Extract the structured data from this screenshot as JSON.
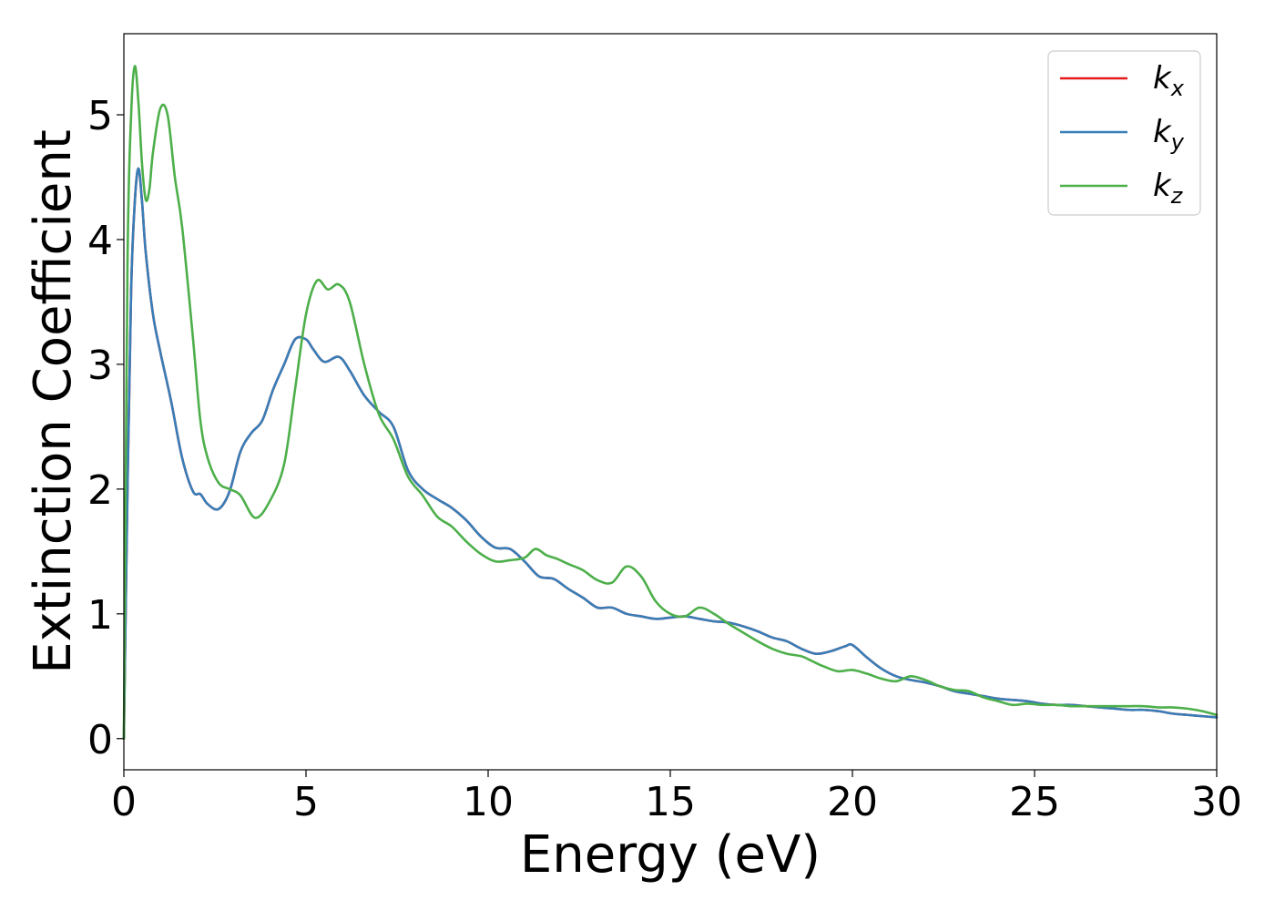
{
  "chart_data": {
    "type": "line",
    "title": "",
    "xlabel": "Energy (eV)",
    "ylabel": "Extinction Coefficient",
    "xlim": [
      0,
      30
    ],
    "ylim": [
      -0.25,
      5.65
    ],
    "xticks": [
      0,
      5,
      10,
      15,
      20,
      25,
      30
    ],
    "yticks": [
      0,
      1,
      2,
      3,
      4,
      5
    ],
    "grid": false,
    "legend_position": "top-right",
    "series": [
      {
        "name": "k",
        "subscript": "x",
        "color": "#e41a1c",
        "x": [
          0.0,
          0.1,
          0.2,
          0.3,
          0.4,
          0.5,
          0.6,
          0.8,
          1.0,
          1.3,
          1.6,
          1.9,
          2.1,
          2.3,
          2.6,
          2.9,
          3.2,
          3.5,
          3.8,
          4.1,
          4.4,
          4.7,
          5.0,
          5.2,
          5.5,
          5.9,
          6.2,
          6.6,
          7.0,
          7.4,
          7.8,
          8.2,
          8.6,
          9.0,
          9.4,
          9.8,
          10.2,
          10.6,
          11.0,
          11.4,
          11.8,
          12.2,
          12.6,
          13.0,
          13.4,
          13.8,
          14.2,
          14.6,
          15.0,
          15.4,
          15.8,
          16.2,
          16.6,
          17.0,
          17.4,
          17.8,
          18.2,
          18.6,
          19.0,
          19.4,
          19.8,
          20.0,
          20.4,
          20.8,
          21.2,
          21.6,
          22.0,
          22.4,
          22.8,
          23.2,
          23.6,
          24.0,
          24.4,
          24.8,
          25.2,
          25.6,
          26.0,
          26.4,
          26.8,
          27.2,
          27.6,
          28.0,
          28.4,
          28.8,
          29.2,
          29.6,
          30.0
        ],
        "y": [
          0.0,
          2.0,
          3.6,
          4.3,
          4.57,
          4.3,
          3.9,
          3.4,
          3.1,
          2.7,
          2.25,
          1.98,
          1.96,
          1.88,
          1.84,
          1.98,
          2.3,
          2.45,
          2.55,
          2.8,
          3.0,
          3.2,
          3.2,
          3.12,
          3.02,
          3.06,
          2.95,
          2.75,
          2.62,
          2.5,
          2.15,
          2.0,
          1.92,
          1.85,
          1.75,
          1.62,
          1.53,
          1.52,
          1.42,
          1.3,
          1.28,
          1.2,
          1.13,
          1.05,
          1.05,
          1.0,
          0.98,
          0.96,
          0.97,
          0.98,
          0.96,
          0.94,
          0.93,
          0.9,
          0.86,
          0.81,
          0.78,
          0.72,
          0.68,
          0.7,
          0.74,
          0.75,
          0.65,
          0.56,
          0.5,
          0.47,
          0.45,
          0.42,
          0.38,
          0.36,
          0.34,
          0.32,
          0.31,
          0.3,
          0.28,
          0.27,
          0.27,
          0.26,
          0.25,
          0.24,
          0.23,
          0.23,
          0.22,
          0.2,
          0.19,
          0.18,
          0.17
        ]
      },
      {
        "name": "k",
        "subscript": "y",
        "color": "#377eb8",
        "x": [
          0.0,
          0.1,
          0.2,
          0.3,
          0.4,
          0.5,
          0.6,
          0.8,
          1.0,
          1.3,
          1.6,
          1.9,
          2.1,
          2.3,
          2.6,
          2.9,
          3.2,
          3.5,
          3.8,
          4.1,
          4.4,
          4.7,
          5.0,
          5.2,
          5.5,
          5.9,
          6.2,
          6.6,
          7.0,
          7.4,
          7.8,
          8.2,
          8.6,
          9.0,
          9.4,
          9.8,
          10.2,
          10.6,
          11.0,
          11.4,
          11.8,
          12.2,
          12.6,
          13.0,
          13.4,
          13.8,
          14.2,
          14.6,
          15.0,
          15.4,
          15.8,
          16.2,
          16.6,
          17.0,
          17.4,
          17.8,
          18.2,
          18.6,
          19.0,
          19.4,
          19.8,
          20.0,
          20.4,
          20.8,
          21.2,
          21.6,
          22.0,
          22.4,
          22.8,
          23.2,
          23.6,
          24.0,
          24.4,
          24.8,
          25.2,
          25.6,
          26.0,
          26.4,
          26.8,
          27.2,
          27.6,
          28.0,
          28.4,
          28.8,
          29.2,
          29.6,
          30.0
        ],
        "y": [
          0.0,
          2.0,
          3.6,
          4.3,
          4.57,
          4.3,
          3.9,
          3.4,
          3.1,
          2.7,
          2.25,
          1.98,
          1.96,
          1.88,
          1.84,
          1.98,
          2.3,
          2.45,
          2.55,
          2.8,
          3.0,
          3.2,
          3.2,
          3.12,
          3.02,
          3.06,
          2.95,
          2.75,
          2.62,
          2.5,
          2.15,
          2.0,
          1.92,
          1.85,
          1.75,
          1.62,
          1.53,
          1.52,
          1.42,
          1.3,
          1.28,
          1.2,
          1.13,
          1.05,
          1.05,
          1.0,
          0.98,
          0.96,
          0.97,
          0.98,
          0.96,
          0.94,
          0.93,
          0.9,
          0.86,
          0.81,
          0.78,
          0.72,
          0.68,
          0.7,
          0.74,
          0.75,
          0.65,
          0.56,
          0.5,
          0.47,
          0.45,
          0.42,
          0.38,
          0.36,
          0.34,
          0.32,
          0.31,
          0.3,
          0.28,
          0.27,
          0.27,
          0.26,
          0.25,
          0.24,
          0.23,
          0.23,
          0.22,
          0.2,
          0.19,
          0.18,
          0.17
        ]
      },
      {
        "name": "k",
        "subscript": "z",
        "color": "#4daf4a",
        "x": [
          0.0,
          0.1,
          0.2,
          0.3,
          0.4,
          0.5,
          0.6,
          0.7,
          0.8,
          1.0,
          1.2,
          1.4,
          1.6,
          1.9,
          2.1,
          2.3,
          2.6,
          2.9,
          3.2,
          3.6,
          4.0,
          4.4,
          4.7,
          5.0,
          5.3,
          5.6,
          5.9,
          6.2,
          6.6,
          7.0,
          7.4,
          7.8,
          8.2,
          8.6,
          9.0,
          9.4,
          9.8,
          10.2,
          10.6,
          11.0,
          11.3,
          11.6,
          11.9,
          12.2,
          12.6,
          13.0,
          13.4,
          13.8,
          14.2,
          14.6,
          15.0,
          15.4,
          15.8,
          16.2,
          16.6,
          17.0,
          17.4,
          17.8,
          18.2,
          18.6,
          18.9,
          19.2,
          19.6,
          20.0,
          20.4,
          20.8,
          21.2,
          21.6,
          22.0,
          22.4,
          22.8,
          23.2,
          23.6,
          24.0,
          24.4,
          24.8,
          25.2,
          25.6,
          26.0,
          26.4,
          26.8,
          27.2,
          27.6,
          28.0,
          28.4,
          28.8,
          29.2,
          29.6,
          30.0
        ],
        "y": [
          0.0,
          3.8,
          5.0,
          5.39,
          5.1,
          4.6,
          4.32,
          4.4,
          4.7,
          5.05,
          5.0,
          4.5,
          4.1,
          3.2,
          2.55,
          2.25,
          2.05,
          2.0,
          1.95,
          1.77,
          1.9,
          2.2,
          2.8,
          3.4,
          3.67,
          3.6,
          3.64,
          3.5,
          3.0,
          2.6,
          2.4,
          2.1,
          1.95,
          1.78,
          1.7,
          1.58,
          1.48,
          1.42,
          1.43,
          1.45,
          1.52,
          1.47,
          1.44,
          1.4,
          1.35,
          1.27,
          1.25,
          1.38,
          1.3,
          1.1,
          1.0,
          0.98,
          1.05,
          1.0,
          0.92,
          0.85,
          0.78,
          0.72,
          0.68,
          0.66,
          0.62,
          0.58,
          0.54,
          0.55,
          0.52,
          0.48,
          0.46,
          0.5,
          0.47,
          0.42,
          0.39,
          0.38,
          0.33,
          0.3,
          0.27,
          0.28,
          0.27,
          0.27,
          0.26,
          0.26,
          0.26,
          0.26,
          0.26,
          0.26,
          0.25,
          0.25,
          0.24,
          0.22,
          0.19
        ]
      }
    ]
  }
}
